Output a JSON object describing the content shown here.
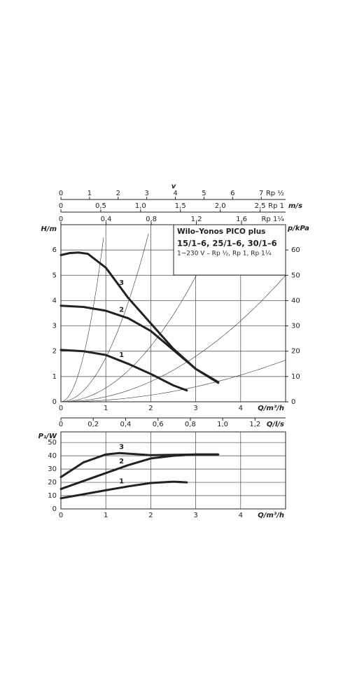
{
  "chart_data": [
    {
      "type": "line",
      "title": "Wilo–Yonos PICO plus",
      "subtitle": "15/1–6, 25/1–6, 30/1–6",
      "note": "1~230 V – Rp ½, Rp 1, Rp 1¼",
      "xlabel": "Q/m³/h",
      "ylabel": "H/m",
      "y2label": "p/kPa",
      "grid": true,
      "color": "#222",
      "xlim": [
        0,
        5
      ],
      "xticks": [
        0,
        1,
        2,
        3,
        4
      ],
      "ylim": [
        0,
        7
      ],
      "yticks": [
        0,
        1,
        2,
        3,
        4,
        5,
        6
      ],
      "y2lim": [
        0,
        70
      ],
      "y2ticks": [
        0,
        10,
        20,
        30,
        40,
        50,
        60
      ],
      "top_axis_label": "v",
      "top_unit": "m/s",
      "top_axes": [
        {
          "label": "Rp ½",
          "xlim": [
            0,
            7.85
          ],
          "xticks": [
            0,
            1,
            2,
            3,
            4,
            5,
            6,
            7
          ]
        },
        {
          "label": "Rp 1",
          "xlim": [
            0,
            2.82
          ],
          "xticks": [
            0,
            {
              "value": 0.5,
              "label": "0,5"
            },
            {
              "value": 1.0,
              "label": "1,0"
            },
            {
              "value": 1.5,
              "label": "1,5"
            },
            {
              "value": 2.0,
              "label": "2,0"
            },
            {
              "value": 2.5,
              "label": "2,5"
            }
          ]
        },
        {
          "label": "Rp 1¼",
          "xlim": [
            0,
            1.99
          ],
          "xticks": [
            0,
            {
              "value": 0.4,
              "label": "0,4"
            },
            {
              "value": 0.8,
              "label": "0,8"
            },
            {
              "value": 1.2,
              "label": "1,2"
            },
            {
              "value": 1.6,
              "label": "1,6"
            }
          ]
        }
      ],
      "series": [
        {
          "name": "3",
          "x": [
            0,
            0.2,
            0.4,
            0.6,
            1,
            1.5,
            2,
            2.5,
            3,
            3.5
          ],
          "values": [
            5.8,
            5.88,
            5.9,
            5.85,
            5.3,
            4.1,
            3.1,
            2.1,
            1.3,
            0.78
          ]
        },
        {
          "name": "2",
          "x": [
            0,
            0.5,
            1,
            1.5,
            2,
            2.5,
            3,
            3.5
          ],
          "values": [
            3.8,
            3.75,
            3.6,
            3.3,
            2.8,
            2.05,
            1.3,
            0.75
          ]
        },
        {
          "name": "1",
          "x": [
            0,
            0.5,
            1,
            1.5,
            2,
            2.5,
            2.8
          ],
          "values": [
            2.05,
            2.0,
            1.85,
            1.5,
            1.1,
            0.65,
            0.45
          ]
        }
      ]
    },
    {
      "type": "line",
      "xlabel": "Q/m³/h",
      "ylabel": "P₁/W",
      "x2label": "Q/l/s",
      "grid": true,
      "color": "#222",
      "xlim": [
        0,
        5
      ],
      "xticks": [
        0,
        1,
        2,
        3,
        4
      ],
      "ylim": [
        0,
        58
      ],
      "yticks": [
        0,
        10,
        20,
        30,
        40,
        50
      ],
      "x2lim": [
        0,
        1.389
      ],
      "x2ticks": [
        0,
        {
          "value": 0.2,
          "label": "0,2"
        },
        {
          "value": 0.4,
          "label": "0,4"
        },
        {
          "value": 0.6,
          "label": "0,6"
        },
        {
          "value": 0.8,
          "label": "0,8"
        },
        {
          "value": 1.0,
          "label": "1,0"
        },
        {
          "value": 1.2,
          "label": "1,2"
        }
      ],
      "series": [
        {
          "name": "3",
          "x": [
            0,
            0.5,
            1,
            1.3,
            2,
            3,
            3.5
          ],
          "values": [
            24,
            35,
            41,
            42,
            40.5,
            41,
            41
          ]
        },
        {
          "name": "2",
          "x": [
            0,
            0.5,
            1,
            1.5,
            2,
            2.5,
            3,
            3.5
          ],
          "values": [
            15,
            21,
            27,
            33,
            38,
            40,
            41,
            41
          ]
        },
        {
          "name": "1",
          "x": [
            0,
            0.5,
            1,
            1.5,
            2,
            2.5,
            2.8
          ],
          "values": [
            8,
            11,
            14,
            17,
            19.5,
            20.5,
            20
          ]
        }
      ]
    }
  ]
}
